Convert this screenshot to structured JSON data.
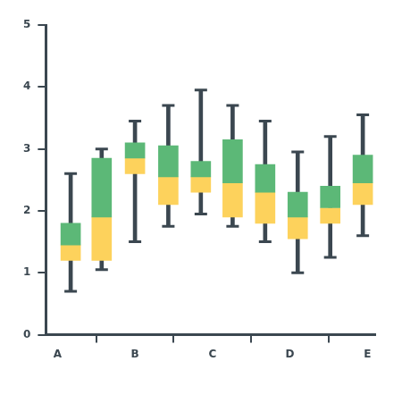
{
  "chart_data": {
    "type": "boxplot",
    "x": [
      0.17,
      0.57,
      1.0,
      1.43,
      1.85,
      2.26,
      2.68,
      3.1,
      3.52,
      3.94
    ],
    "boxes": [
      {
        "min": 0.7,
        "q1": 1.2,
        "median": 1.45,
        "q3": 1.8,
        "max": 2.6
      },
      {
        "min": 1.05,
        "q1": 1.2,
        "median": 1.9,
        "q3": 2.85,
        "max": 3.0
      },
      {
        "min": 1.5,
        "q1": 2.6,
        "median": 2.85,
        "q3": 3.1,
        "max": 3.45
      },
      {
        "min": 1.75,
        "q1": 2.1,
        "median": 2.55,
        "q3": 3.05,
        "max": 3.7
      },
      {
        "min": 1.95,
        "q1": 2.3,
        "median": 2.55,
        "q3": 2.8,
        "max": 3.95
      },
      {
        "min": 1.75,
        "q1": 1.9,
        "median": 2.45,
        "q3": 3.15,
        "max": 3.7
      },
      {
        "min": 1.5,
        "q1": 1.8,
        "median": 2.3,
        "q3": 2.75,
        "max": 3.45
      },
      {
        "min": 1.0,
        "q1": 1.55,
        "median": 1.9,
        "q3": 2.3,
        "max": 2.95
      },
      {
        "min": 1.25,
        "q1": 1.8,
        "median": 2.05,
        "q3": 2.4,
        "max": 3.2
      },
      {
        "min": 1.6,
        "q1": 2.1,
        "median": 2.45,
        "q3": 2.9,
        "max": 3.55
      }
    ],
    "colors": [
      "#fdd25c",
      "#5cb877"
    ],
    "xlim": [
      -0.15,
      4.1
    ],
    "xticks": [
      {
        "value": 0,
        "label": "A"
      },
      {
        "value": 1,
        "label": "B"
      },
      {
        "value": 2,
        "label": "C"
      },
      {
        "value": 3,
        "label": "D"
      },
      {
        "value": 4,
        "label": "E"
      }
    ],
    "ylim": [
      0,
      5
    ],
    "yticks": [
      0,
      1,
      2,
      3,
      4,
      5
    ],
    "grid": false
  }
}
